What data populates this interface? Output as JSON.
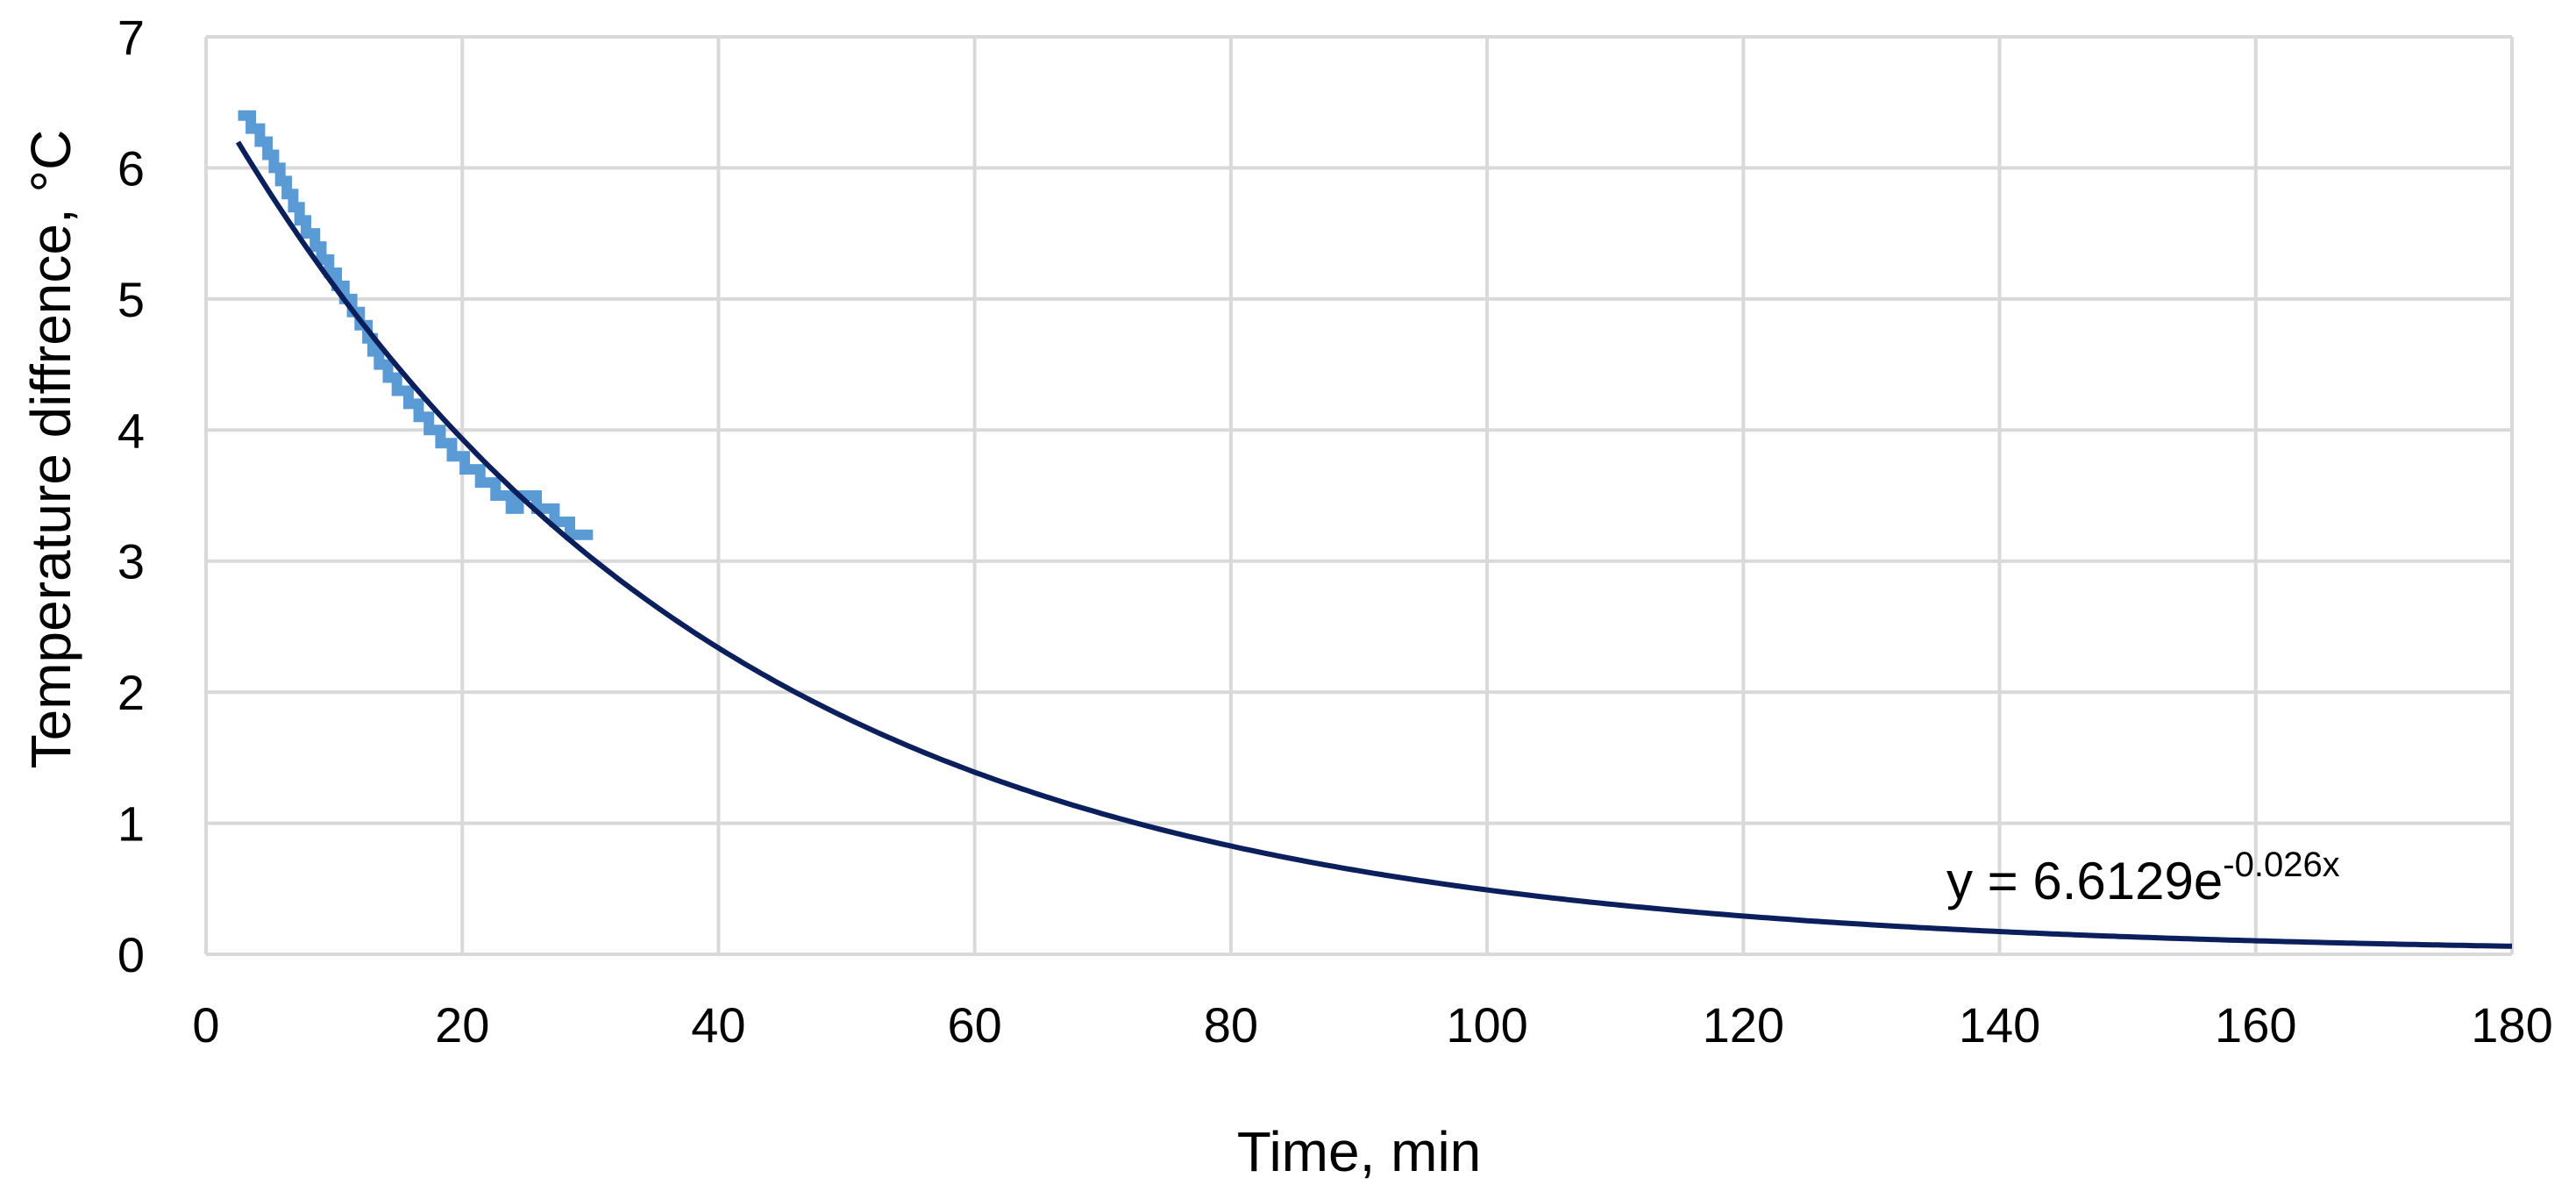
{
  "chart_data": {
    "type": "scatter",
    "xlabel": "Time, min",
    "ylabel": "Temperature diffrence, °C",
    "xlim": [
      0,
      180
    ],
    "ylim": [
      0,
      7
    ],
    "x_ticks": [
      "0",
      "20",
      "40",
      "60",
      "80",
      "100",
      "120",
      "140",
      "160",
      "180"
    ],
    "y_ticks": [
      "0",
      "1",
      "2",
      "3",
      "4",
      "5",
      "6",
      "7"
    ],
    "grid": true,
    "colors": {
      "measured": "#5b9bd5",
      "trendline": "#0b1f5c",
      "grid": "#d9d9d9"
    },
    "series": [
      {
        "type": "step-line",
        "points": [
          [
            2.5,
            6.4
          ],
          [
            3.5,
            6.4
          ],
          [
            3.5,
            6.3
          ],
          [
            4.2,
            6.3
          ],
          [
            4.2,
            6.2
          ],
          [
            4.8,
            6.2
          ],
          [
            4.8,
            6.1
          ],
          [
            5.3,
            6.1
          ],
          [
            5.3,
            6.0
          ],
          [
            5.8,
            6.0
          ],
          [
            5.8,
            5.9
          ],
          [
            6.3,
            5.9
          ],
          [
            6.3,
            5.8
          ],
          [
            6.8,
            5.8
          ],
          [
            6.8,
            5.7
          ],
          [
            7.3,
            5.7
          ],
          [
            7.3,
            5.6
          ],
          [
            7.8,
            5.6
          ],
          [
            7.8,
            5.5
          ],
          [
            8.5,
            5.5
          ],
          [
            8.5,
            5.4
          ],
          [
            9.0,
            5.4
          ],
          [
            9.0,
            5.3
          ],
          [
            9.6,
            5.3
          ],
          [
            9.6,
            5.2
          ],
          [
            10.2,
            5.2
          ],
          [
            10.2,
            5.1
          ],
          [
            10.8,
            5.1
          ],
          [
            10.8,
            5.0
          ],
          [
            11.4,
            5.0
          ],
          [
            11.4,
            4.9
          ],
          [
            12.0,
            4.9
          ],
          [
            12.0,
            4.8
          ],
          [
            12.6,
            4.8
          ],
          [
            12.6,
            4.7
          ],
          [
            13.0,
            4.7
          ],
          [
            13.0,
            4.6
          ],
          [
            13.5,
            4.6
          ],
          [
            13.5,
            4.5
          ],
          [
            14.2,
            4.5
          ],
          [
            14.2,
            4.4
          ],
          [
            14.9,
            4.4
          ],
          [
            14.9,
            4.3
          ],
          [
            15.8,
            4.3
          ],
          [
            15.8,
            4.2
          ],
          [
            16.6,
            4.2
          ],
          [
            16.6,
            4.1
          ],
          [
            17.4,
            4.1
          ],
          [
            17.4,
            4.0
          ],
          [
            18.3,
            4.0
          ],
          [
            18.3,
            3.9
          ],
          [
            19.2,
            3.9
          ],
          [
            19.2,
            3.8
          ],
          [
            20.2,
            3.8
          ],
          [
            20.2,
            3.7
          ],
          [
            21.4,
            3.7
          ],
          [
            21.4,
            3.6
          ],
          [
            22.6,
            3.6
          ],
          [
            22.6,
            3.5
          ],
          [
            23.8,
            3.5
          ],
          [
            23.8,
            3.4
          ],
          [
            24.4,
            3.4
          ],
          [
            24.4,
            3.5
          ],
          [
            25.8,
            3.5
          ],
          [
            25.8,
            3.4
          ],
          [
            27.2,
            3.4
          ],
          [
            27.2,
            3.3
          ],
          [
            28.4,
            3.3
          ],
          [
            28.4,
            3.2
          ],
          [
            30.2,
            3.2
          ]
        ]
      },
      {
        "type": "exponential-trendline",
        "a": 6.6129,
        "b": -0.026,
        "x_range": [
          2.5,
          180
        ]
      }
    ],
    "annotations": [
      {
        "text_main": "y = 6.6129e",
        "text_exponent": "-0.026x"
      }
    ]
  }
}
